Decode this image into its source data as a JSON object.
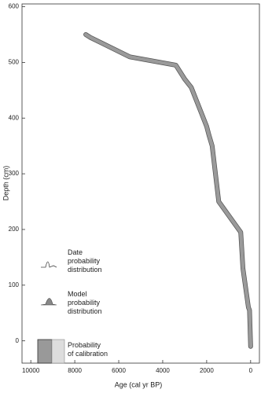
{
  "chart_data": {
    "type": "line",
    "x_label": "Age (cal yr BP)",
    "y_label": "Depth (cm)",
    "xlim": [
      10400,
      -400
    ],
    "ylim": [
      -40,
      605
    ],
    "xticks": [
      10000,
      8000,
      6000,
      4000,
      2000,
      0
    ],
    "yticks": [
      0,
      100,
      200,
      300,
      400,
      500,
      600
    ],
    "x": [
      7500,
      7300,
      5500,
      3400,
      3000,
      2700,
      2400,
      2000,
      1900,
      1750,
      1450,
      450,
      350,
      100,
      50,
      0
    ],
    "series": [
      {
        "color": "#9a9a9a",
        "values": [
          550,
          545,
          510,
          495,
          470,
          455,
          425,
          385,
          370,
          350,
          250,
          195,
          130,
          60,
          55,
          -10
        ]
      }
    ],
    "legend": [
      "Date probability distribution",
      "Model probability distribution",
      "Probability of calibration"
    ]
  }
}
